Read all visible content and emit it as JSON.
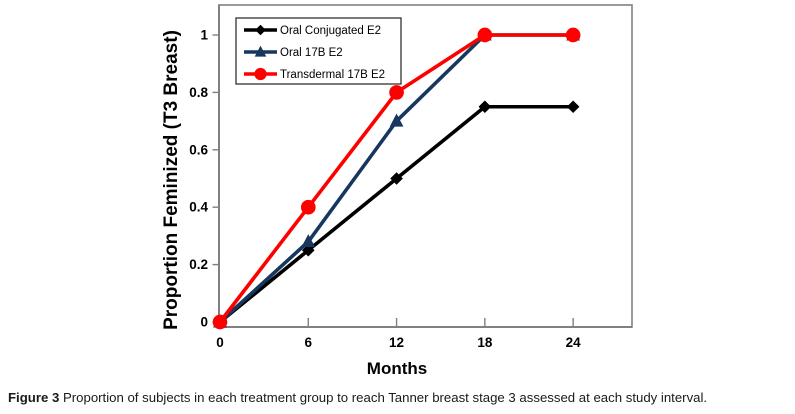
{
  "figure": {
    "caption_label": "Figure 3",
    "caption_text": "Proportion of subjects in each treatment group to reach Tanner breast stage 3 assessed at each study interval."
  },
  "chart_data": {
    "type": "line",
    "title": "",
    "x": [
      0,
      6,
      12,
      18,
      24
    ],
    "xticks": [
      0,
      6,
      12,
      18,
      24
    ],
    "yticks": [
      0,
      0.2,
      0.4,
      0.6,
      0.8,
      1
    ],
    "xlabel": "Months",
    "ylabel": "Proportion Feminized (T3 Breast)",
    "xlim": [
      0,
      28
    ],
    "ylim": [
      0,
      1.1
    ],
    "grid": false,
    "legend_position": "top-left",
    "axis_color": "#808080",
    "legend_border_color": "#333333",
    "series": [
      {
        "name": "Oral Conjugated E2",
        "marker": "diamond",
        "color": "#000000",
        "values": [
          0,
          0.25,
          0.5,
          0.75,
          0.75
        ]
      },
      {
        "name": "Oral 17B E2",
        "marker": "triangle",
        "color": "#17375E",
        "values": [
          0,
          0.28,
          0.7,
          1,
          1
        ]
      },
      {
        "name": "Transdermal 17B E2",
        "marker": "circle",
        "color": "#FF0000",
        "values": [
          0,
          0.4,
          0.8,
          1,
          1
        ]
      }
    ]
  }
}
